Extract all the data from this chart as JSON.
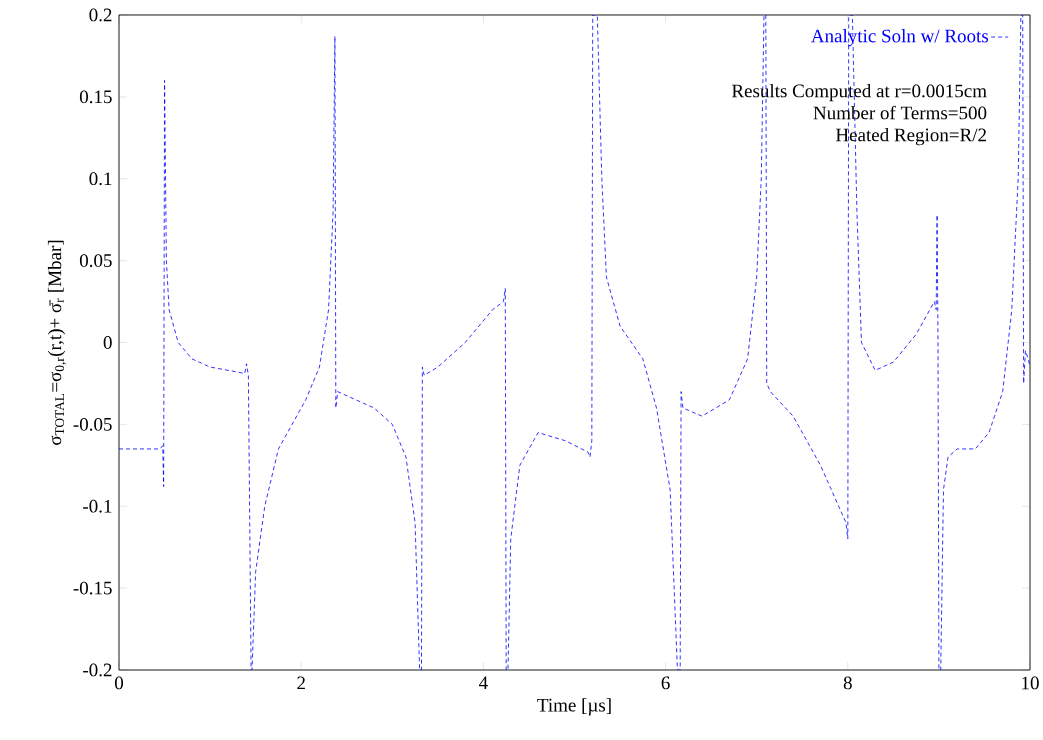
{
  "chart_data": {
    "type": "line",
    "xlabel": "Time  [µs]",
    "ylabel": "σ$_{TOTAL}$=σ$_{0,r}$(r,t)+ σ̄$_{r}$  [Mbar]",
    "xlim": [
      0,
      10
    ],
    "ylim": [
      -0.2,
      0.2
    ],
    "xticks": [
      0,
      2,
      4,
      6,
      8,
      10
    ],
    "yticks": [
      -0.2,
      -0.15,
      -0.1,
      -0.05,
      0,
      0.05,
      0.1,
      0.15,
      0.2
    ],
    "legend": "top right",
    "line_style": "dashed",
    "marker": "none",
    "grid": false,
    "annotations": [
      "Results Computed at r=0.0015cm",
      "Number of Terms=500",
      "Heated Region=R/2"
    ],
    "series": [
      {
        "name": "Analytic Soln w/ Roots",
        "color": "#0000ff",
        "x": [
          0,
          0.45,
          0.48,
          0.49,
          0.5,
          0.52,
          0.55,
          0.65,
          0.8,
          1.0,
          1.3,
          1.38,
          1.4,
          1.42,
          1.45,
          1.46,
          1.5,
          1.6,
          1.75,
          1.9,
          2.05,
          2.2,
          2.3,
          2.35,
          2.37,
          2.38,
          2.4,
          2.6,
          2.8,
          3.0,
          3.15,
          3.25,
          3.3,
          3.32,
          3.33,
          3.35,
          3.5,
          3.8,
          4.1,
          4.22,
          4.24,
          4.25,
          4.27,
          4.3,
          4.4,
          4.6,
          4.9,
          5.15,
          5.17,
          5.19,
          5.2,
          5.25,
          5.3,
          5.35,
          5.5,
          5.75,
          5.9,
          6.05,
          6.13,
          6.16,
          6.17,
          6.19,
          6.4,
          6.7,
          6.9,
          7.0,
          7.05,
          7.08,
          7.1,
          7.11,
          7.15,
          7.4,
          7.7,
          7.9,
          7.98,
          8.0,
          8.01,
          8.05,
          8.1,
          8.15,
          8.3,
          8.5,
          8.75,
          8.95,
          8.97,
          8.98,
          8.99,
          9.0,
          9.02,
          9.05,
          9.1,
          9.2,
          9.4,
          9.55,
          9.7,
          9.8,
          9.87,
          9.9,
          9.92,
          9.93,
          9.95,
          9.98,
          10
        ],
        "values": [
          -0.065,
          -0.065,
          -0.063,
          -0.088,
          0.16,
          0.05,
          0.02,
          0.0,
          -0.01,
          -0.015,
          -0.018,
          -0.019,
          -0.013,
          -0.02,
          -0.2,
          -0.2,
          -0.14,
          -0.1,
          -0.065,
          -0.05,
          -0.035,
          -0.015,
          0.02,
          0.08,
          0.187,
          -0.04,
          -0.03,
          -0.035,
          -0.04,
          -0.05,
          -0.07,
          -0.11,
          -0.2,
          -0.2,
          -0.015,
          -0.02,
          -0.015,
          0.0,
          0.02,
          0.025,
          0.033,
          -0.2,
          -0.2,
          -0.12,
          -0.075,
          -0.055,
          -0.06,
          -0.067,
          -0.07,
          -0.06,
          0.2,
          0.2,
          0.1,
          0.04,
          0.01,
          -0.01,
          -0.04,
          -0.09,
          -0.2,
          -0.2,
          -0.03,
          -0.04,
          -0.045,
          -0.035,
          -0.01,
          0.04,
          0.1,
          0.2,
          0.2,
          -0.025,
          -0.03,
          -0.045,
          -0.075,
          -0.1,
          -0.11,
          -0.12,
          0.2,
          0.2,
          0.08,
          0.0,
          -0.017,
          -0.012,
          0.005,
          0.025,
          0.02,
          0.078,
          0.0,
          -0.2,
          -0.2,
          -0.09,
          -0.07,
          -0.065,
          -0.065,
          -0.055,
          -0.03,
          0.02,
          0.1,
          0.2,
          0.2,
          -0.025,
          -0.005,
          -0.01,
          -0.015
        ]
      }
    ]
  }
}
